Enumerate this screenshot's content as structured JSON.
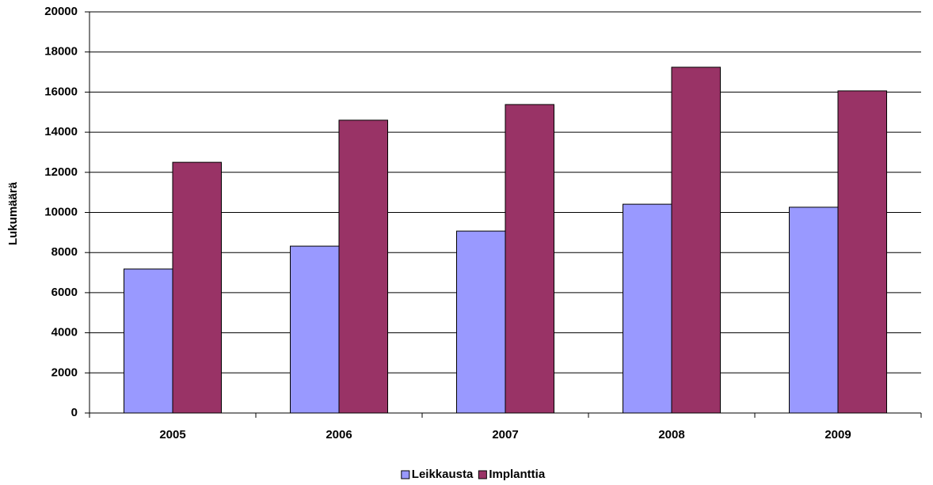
{
  "chart_data": {
    "type": "bar",
    "y_label": "Lukumäärä",
    "categories": [
      "2005",
      "2006",
      "2007",
      "2008",
      "2009"
    ],
    "series": [
      {
        "name": "Leikkausta",
        "color": "#9999ff",
        "values": [
          7180,
          8320,
          9070,
          10410,
          10260
        ]
      },
      {
        "name": "Implanttia",
        "color": "#993366",
        "values": [
          12500,
          14600,
          15380,
          17240,
          16060
        ]
      }
    ],
    "ylim": [
      0,
      20000
    ],
    "yticks": [
      0,
      2000,
      4000,
      6000,
      8000,
      10000,
      12000,
      14000,
      16000,
      18000,
      20000
    ],
    "grid": true,
    "legend": "bottom"
  }
}
